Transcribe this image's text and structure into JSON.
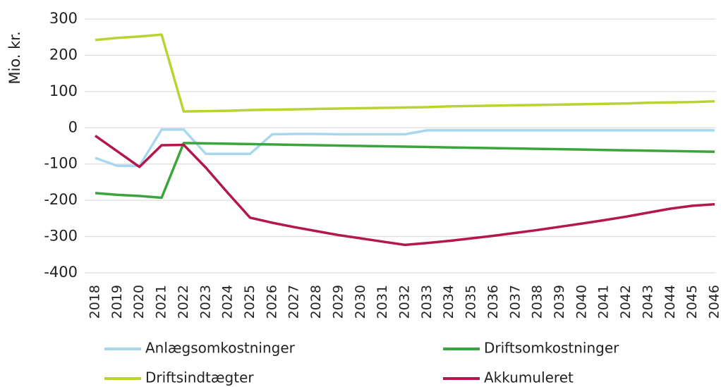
{
  "chart_data": {
    "type": "line",
    "ylabel": "Mio. kr.",
    "categories": [
      "2018",
      "2019",
      "2020",
      "2021",
      "2022",
      "2023",
      "2024",
      "2025",
      "2026",
      "2027",
      "2028",
      "2029",
      "2030",
      "2031",
      "2032",
      "2033",
      "2034",
      "2035",
      "2036",
      "2037",
      "2038",
      "2039",
      "2040",
      "2041",
      "2042",
      "2043",
      "2044",
      "2045",
      "2046"
    ],
    "ylim": [
      -400,
      300
    ],
    "yticks": [
      -400,
      -300,
      -200,
      -100,
      0,
      100,
      200,
      300
    ],
    "grid": true,
    "series": [
      {
        "name": "Anlægsomkostninger",
        "color": "#a9d8ee",
        "values": [
          -83,
          -105,
          -105,
          -5,
          -5,
          -72,
          -72,
          -72,
          -18,
          -17,
          -17,
          -18,
          -18,
          -18,
          -18,
          -7,
          -7,
          -7,
          -7,
          -7,
          -7,
          -7,
          -7,
          -7,
          -7,
          -7,
          -7,
          -7,
          -7
        ]
      },
      {
        "name": "Driftsomkostninger",
        "color": "#3aa53c",
        "values": [
          -180,
          -185,
          -188,
          -193,
          -42,
          -43,
          -44,
          -45,
          -46,
          -47,
          -48,
          -49,
          -50,
          -51,
          -52,
          -53,
          -54,
          -55,
          -56,
          -57,
          -58,
          -59,
          -60,
          -61,
          -62,
          -63,
          -64,
          -65,
          -66
        ]
      },
      {
        "name": "Driftsindtægter",
        "color": "#b8d431",
        "values": [
          242,
          248,
          252,
          257,
          45,
          46,
          47,
          49,
          50,
          51,
          52,
          53,
          54,
          55,
          56,
          57,
          59,
          60,
          61,
          62,
          63,
          64,
          65,
          66,
          67,
          69,
          70,
          71,
          73
        ]
      },
      {
        "name": "Akkumuleret",
        "color": "#b3174d",
        "values": [
          -22,
          -65,
          -108,
          -48,
          -47,
          -110,
          -180,
          -248,
          -262,
          -274,
          -285,
          -296,
          -305,
          -314,
          -323,
          -318,
          -312,
          -305,
          -298,
          -290,
          -282,
          -273,
          -264,
          -255,
          -245,
          -234,
          -223,
          -215,
          -211
        ]
      }
    ]
  }
}
